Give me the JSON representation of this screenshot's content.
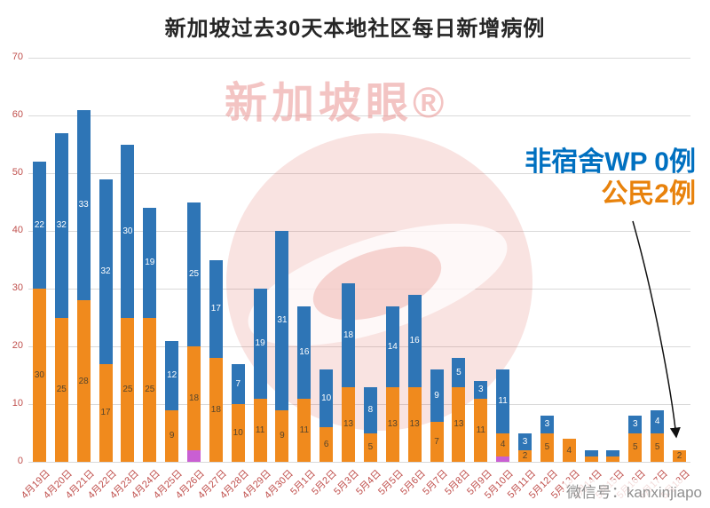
{
  "title": "新加坡过去30天本地社区每日新增病例",
  "watermark": {
    "brand": "新加坡眼®"
  },
  "annotation": {
    "non_dorm_wp": "非宿舍WP 0例",
    "citizen": "公民2例",
    "non_dorm_wp_color": "#0070C0",
    "citizen_color": "#E8820C"
  },
  "footer": {
    "wechat_id": "微信号：kanxinjiapo"
  },
  "axis": {
    "tick_color": "#C0504D"
  },
  "chart_data": {
    "type": "bar",
    "stacked": true,
    "title": "新加坡过去30天本地社区每日新增病例",
    "xlabel": "",
    "ylabel": "",
    "ylim": [
      0,
      70
    ],
    "ytick_step": 10,
    "grid": true,
    "legend": "none",
    "categories": [
      "4月19日",
      "4月20日",
      "4月21日",
      "4月22日",
      "4月23日",
      "4月24日",
      "4月25日",
      "4月26日",
      "4月27日",
      "4月28日",
      "4月29日",
      "4月30日",
      "5月1日",
      "5月2日",
      "5月3日",
      "5月4日",
      "5月5日",
      "5月6日",
      "5月7日",
      "5月8日",
      "5月9日",
      "5月10日",
      "5月11日",
      "5月12日",
      "5月13日",
      "5月14日",
      "5月15日",
      "5月16日",
      "5月17日",
      "5月18日"
    ],
    "series": [
      {
        "name": "purple-unlabeled",
        "color": "#C95FD3",
        "label_color": "#ffffff",
        "show_labels": false,
        "values": [
          0,
          0,
          0,
          0,
          0,
          0,
          0,
          2,
          0,
          0,
          0,
          0,
          0,
          0,
          0,
          0,
          0,
          0,
          0,
          0,
          0,
          1,
          0,
          0,
          0,
          0,
          0,
          0,
          0,
          0
        ]
      },
      {
        "name": "公民",
        "color": "#F08A1D",
        "label_color": "#57452B",
        "show_labels": true,
        "values": [
          30,
          25,
          28,
          17,
          25,
          25,
          9,
          18,
          18,
          10,
          11,
          9,
          11,
          6,
          13,
          5,
          13,
          13,
          7,
          13,
          11,
          4,
          2,
          5,
          4,
          1,
          1,
          5,
          5,
          2
        ]
      },
      {
        "name": "非宿舍WP",
        "color": "#2E75B6",
        "label_color": "#FFFFFF",
        "show_labels": true,
        "values": [
          22,
          32,
          33,
          32,
          30,
          19,
          12,
          25,
          17,
          7,
          19,
          31,
          16,
          10,
          18,
          8,
          14,
          16,
          9,
          5,
          3,
          11,
          3,
          3,
          0,
          1,
          1,
          3,
          4,
          0
        ]
      }
    ]
  }
}
